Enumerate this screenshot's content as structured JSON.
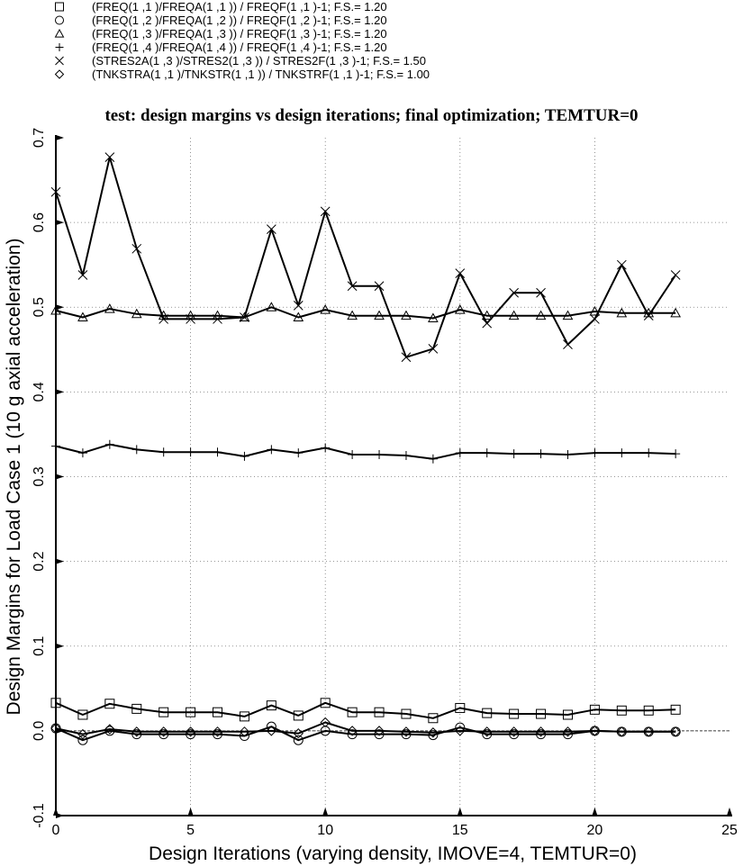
{
  "legend": [
    {
      "symbol": "square",
      "label": "(FREQ(1 ,1 )/FREQA(1 ,1 )) / FREQF(1 ,1 )-1; F.S.=  1.20"
    },
    {
      "symbol": "circle",
      "label": "(FREQ(1 ,2 )/FREQA(1 ,2 )) / FREQF(1 ,2 )-1; F.S.=  1.20"
    },
    {
      "symbol": "triangle",
      "label": "(FREQ(1 ,3 )/FREQA(1 ,3 )) / FREQF(1 ,3 )-1; F.S.=  1.20"
    },
    {
      "symbol": "plus",
      "label": "(FREQ(1 ,4 )/FREQA(1 ,4 )) / FREQF(1 ,4 )-1; F.S.=  1.20"
    },
    {
      "symbol": "cross",
      "label": "(STRES2A(1 ,3 )/STRES2(1 ,3 )) / STRES2F(1 ,3 )-1; F.S.=  1.50"
    },
    {
      "symbol": "diamond",
      "label": "(TNKSTRA(1 ,1 )/TNKSTR(1 ,1 )) / TNKSTRF(1 ,1 )-1; F.S.=  1.00"
    }
  ],
  "chart_data": {
    "type": "line",
    "title": "test: design margins vs design iterations; final optimization; TEMTUR=0",
    "xlabel": "Design Iterations (varying density, IMOVE=4, TEMTUR=0)",
    "ylabel": "Design Margins for Load Case 1 (10 g axial acceleration)",
    "xlim": [
      0,
      25
    ],
    "ylim": [
      -0.1,
      0.7
    ],
    "x_ticks": [
      0,
      5,
      10,
      15,
      20,
      25
    ],
    "y_ticks": [
      -0.1,
      0.0,
      0.1,
      0.2,
      0.3,
      0.4,
      0.5,
      0.6,
      0.7
    ],
    "x_tick_labels": [
      "0",
      "5",
      "10",
      "15",
      "20",
      "25"
    ],
    "y_tick_labels": [
      "-0.1",
      "0.0",
      "0.1",
      "0.2",
      "0.3",
      "0.4",
      "0.5",
      "0.6",
      "0.7"
    ],
    "grid": true,
    "x": [
      0,
      1,
      2,
      3,
      4,
      5,
      6,
      7,
      8,
      9,
      10,
      11,
      12,
      13,
      14,
      15,
      16,
      17,
      18,
      19,
      20,
      21,
      22,
      23
    ],
    "series": [
      {
        "name": "(FREQ(1 ,1 )/FREQA(1 ,1 )) / FREQF(1 ,1 )-1; F.S.=  1.20",
        "symbol": "square",
        "values": [
          0.033,
          0.019,
          0.032,
          0.026,
          0.022,
          0.022,
          0.022,
          0.017,
          0.03,
          0.018,
          0.033,
          0.022,
          0.022,
          0.02,
          0.015,
          0.027,
          0.021,
          0.02,
          0.02,
          0.019,
          0.025,
          0.024,
          0.024,
          0.025
        ]
      },
      {
        "name": "(FREQ(1 ,2 )/FREQA(1 ,2 )) / FREQF(1 ,2 )-1; F.S.=  1.20",
        "symbol": "circle",
        "values": [
          0.003,
          -0.011,
          0.0,
          -0.004,
          -0.004,
          -0.004,
          -0.004,
          -0.006,
          0.005,
          -0.011,
          0.0,
          -0.004,
          -0.004,
          -0.004,
          -0.005,
          0.004,
          -0.004,
          -0.004,
          -0.004,
          -0.004,
          0.0,
          -0.001,
          -0.001,
          -0.001
        ]
      },
      {
        "name": "(FREQ(1 ,3 )/FREQA(1 ,3 )) / FREQF(1 ,3 )-1; F.S.=  1.20",
        "symbol": "triangle",
        "values": [
          0.496,
          0.488,
          0.498,
          0.492,
          0.49,
          0.49,
          0.49,
          0.488,
          0.5,
          0.488,
          0.497,
          0.49,
          0.49,
          0.49,
          0.487,
          0.497,
          0.49,
          0.49,
          0.49,
          0.49,
          0.495,
          0.493,
          0.493,
          0.493
        ]
      },
      {
        "name": "(FREQ(1 ,4 )/FREQA(1 ,4 )) / FREQF(1 ,4 )-1; F.S.=  1.20",
        "symbol": "plus",
        "values": [
          0.336,
          0.328,
          0.338,
          0.332,
          0.329,
          0.329,
          0.329,
          0.324,
          0.332,
          0.328,
          0.334,
          0.326,
          0.326,
          0.325,
          0.321,
          0.328,
          0.328,
          0.327,
          0.327,
          0.326,
          0.328,
          0.328,
          0.328,
          0.327
        ]
      },
      {
        "name": "(STRES2A(1 ,3 )/STRES2(1 ,3 )) / STRES2F(1 ,3 )-1; F.S.=  1.50",
        "symbol": "cross",
        "values": [
          0.636,
          0.538,
          0.677,
          0.569,
          0.486,
          0.486,
          0.486,
          0.488,
          0.592,
          0.502,
          0.613,
          0.525,
          0.525,
          0.441,
          0.451,
          0.54,
          0.481,
          0.517,
          0.517,
          0.456,
          0.486,
          0.55,
          0.49,
          0.538
        ]
      },
      {
        "name": "(TNKSTRA(1 ,1 )/TNKSTR(1 ,1 )) / TNKSTRF(1 ,1 )-1; F.S.=  1.00",
        "symbol": "diamond",
        "values": [
          0.003,
          -0.004,
          0.002,
          -0.001,
          -0.001,
          -0.001,
          -0.001,
          -0.001,
          0.0,
          -0.003,
          0.01,
          0.0,
          0.0,
          -0.001,
          -0.002,
          0.0,
          -0.001,
          -0.001,
          -0.001,
          -0.001,
          0.0,
          -0.001,
          -0.001,
          -0.001
        ]
      }
    ]
  }
}
